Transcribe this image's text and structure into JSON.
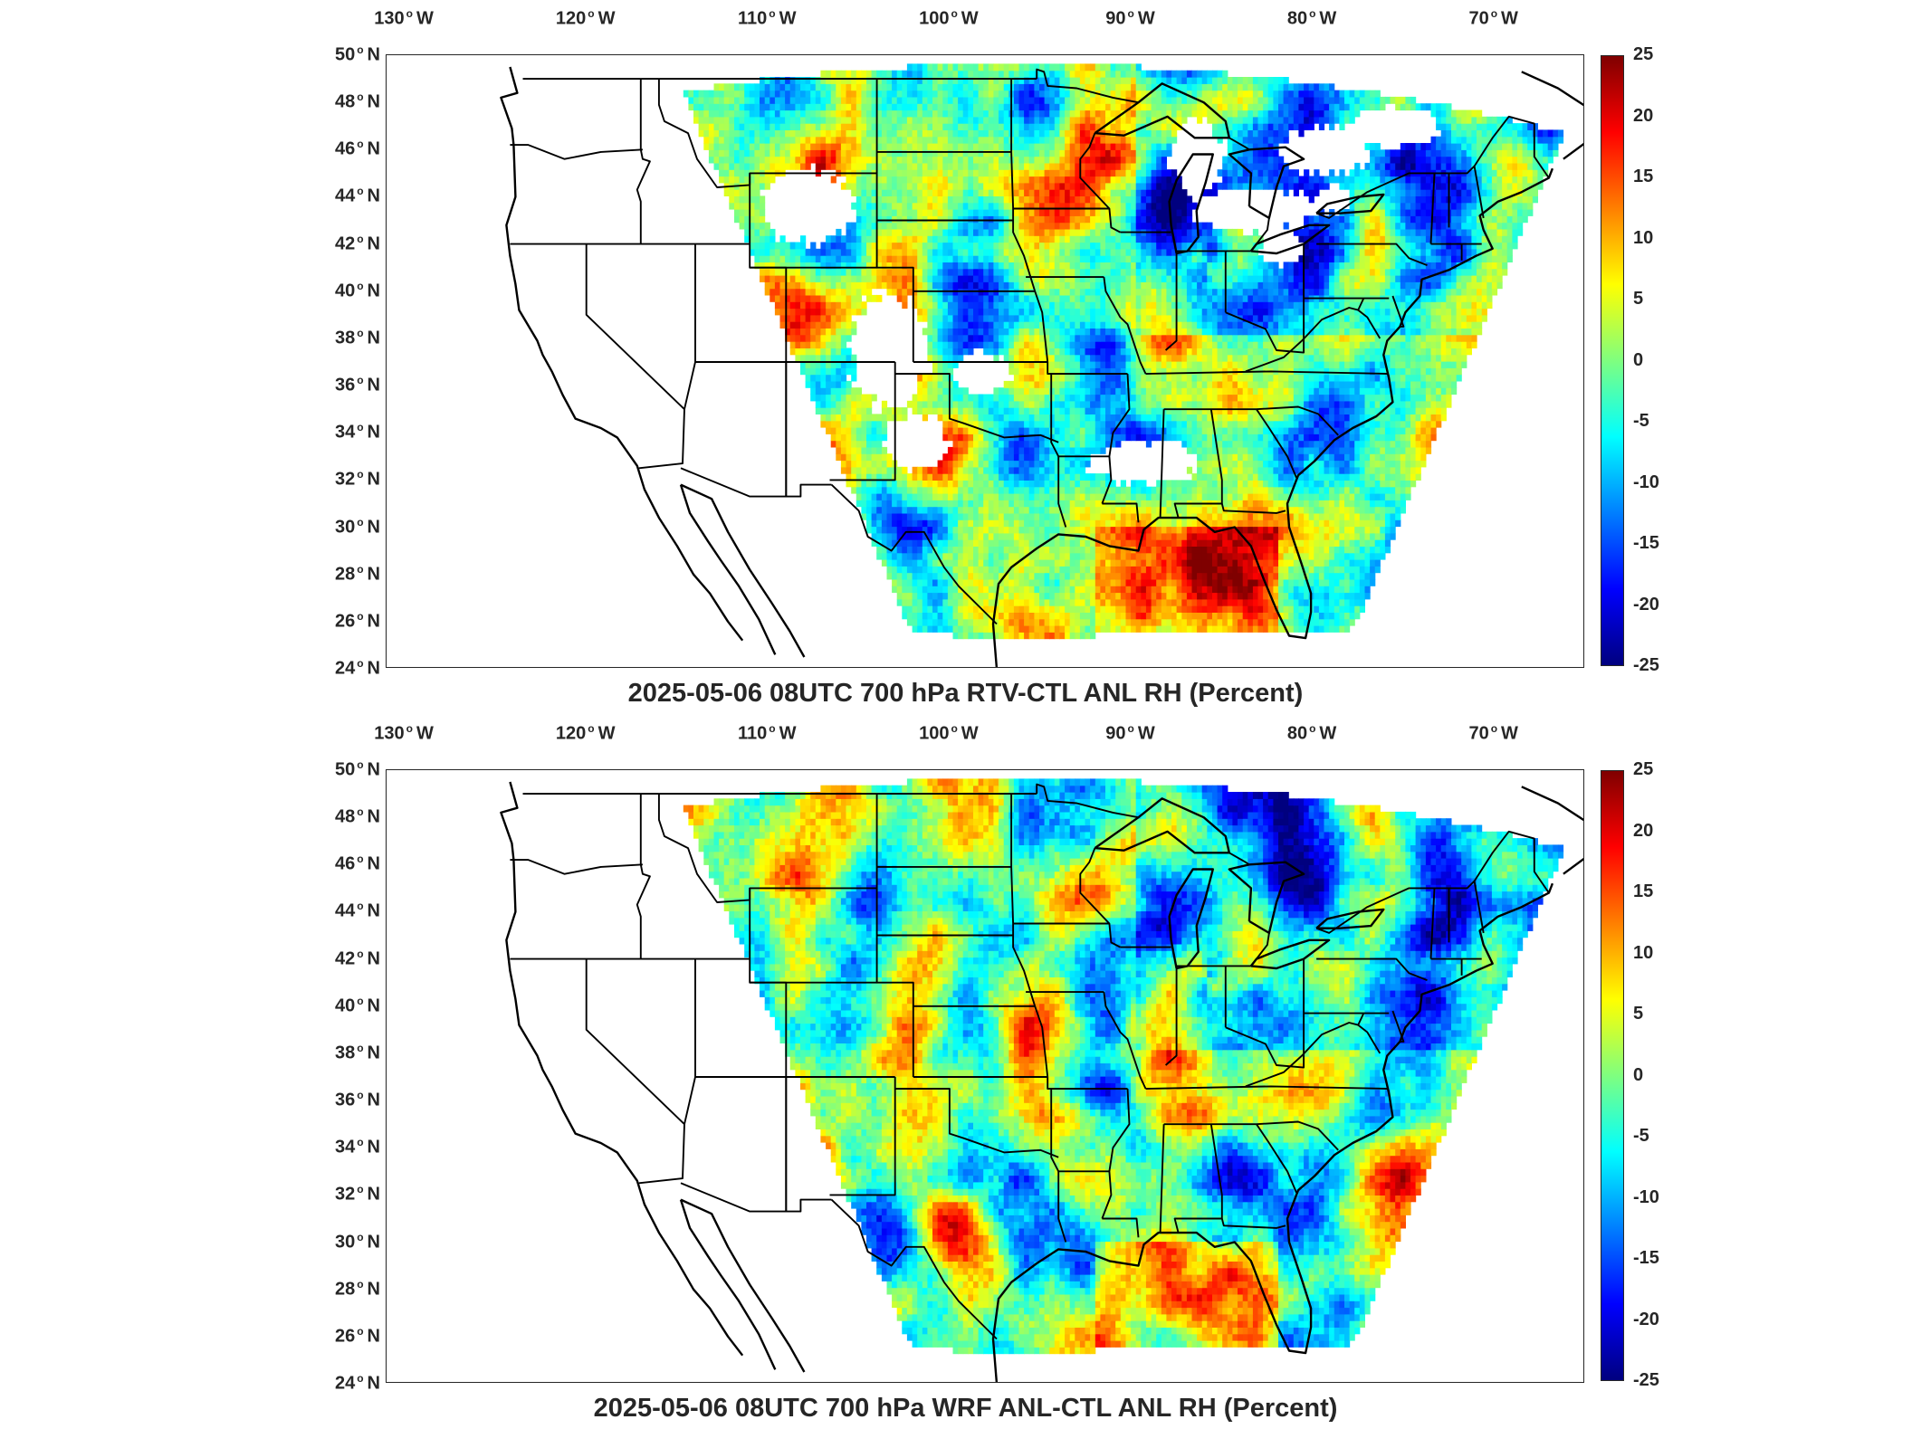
{
  "panels": [
    {
      "title": "2025-05-06 08UTC 700 hPa RTV-CTL ANL RH (Percent)",
      "has_blanks": true
    },
    {
      "title": "2025-05-06 08UTC 700 hPa WRF ANL-CTL ANL RH (Percent)",
      "has_blanks": false
    }
  ],
  "axes": {
    "lon_labels": [
      "130",
      "120",
      "110",
      "100",
      "90",
      "80",
      "70"
    ],
    "lon_suffix": "W",
    "lat_labels": [
      "50",
      "48",
      "46",
      "44",
      "42",
      "40",
      "38",
      "36",
      "34",
      "32",
      "30",
      "28",
      "26",
      "24"
    ],
    "lat_suffix": "N"
  },
  "colorbar": {
    "ticks": [
      "25",
      "20",
      "15",
      "10",
      "5",
      "0",
      "-5",
      "-10",
      "-15",
      "-20",
      "-25"
    ],
    "range": [
      -25,
      25
    ],
    "colormap": "jet",
    "colors": [
      "#00007f",
      "#0000ff",
      "#007fff",
      "#00ffff",
      "#7fff7f",
      "#ffff00",
      "#ff7f00",
      "#ff0000",
      "#7f0000"
    ]
  },
  "map": {
    "lon_range": [
      -131,
      -65
    ],
    "lat_range": [
      24,
      50
    ],
    "projection": "equirectangular",
    "boundary_color": "#000000",
    "blank_color": "#ffffff"
  }
}
